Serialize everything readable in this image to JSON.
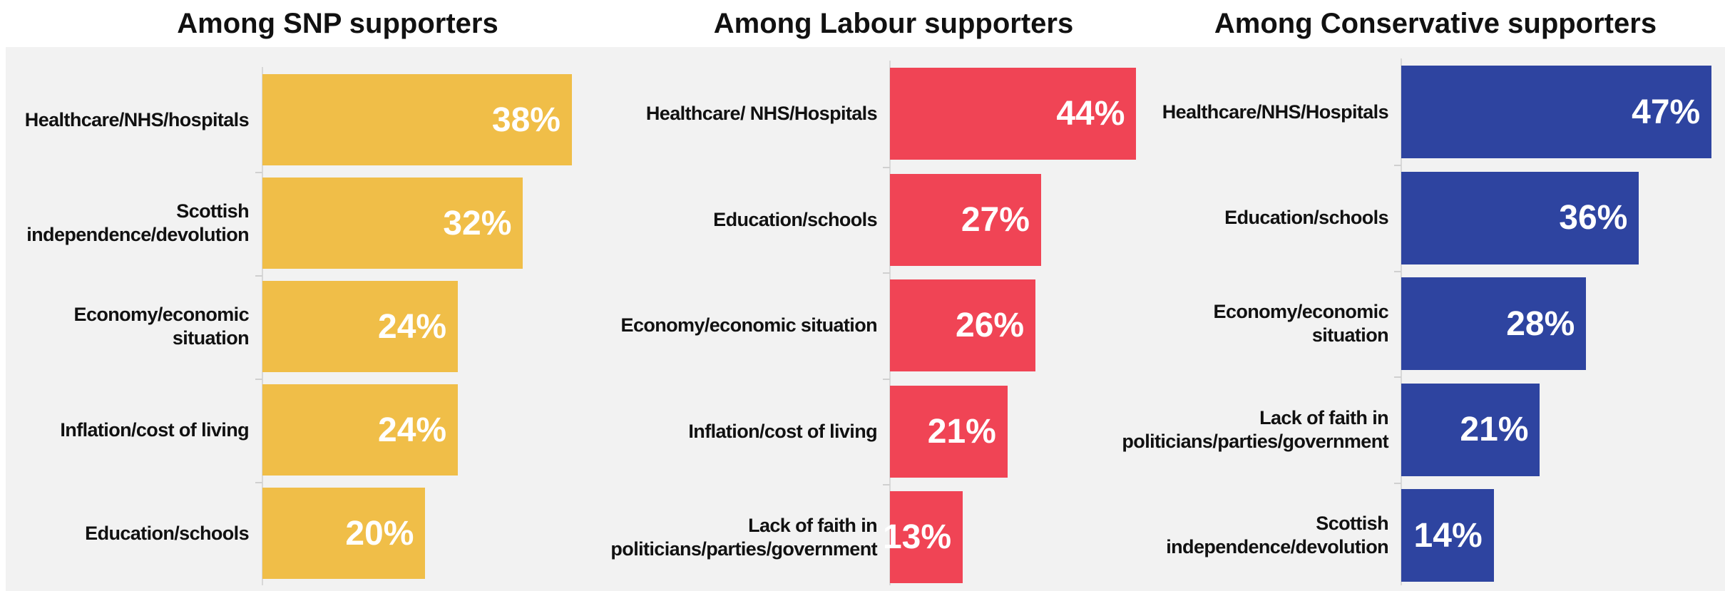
{
  "chart_data": [
    {
      "type": "bar",
      "title": "Among SNP supporters",
      "color": "#f0be48",
      "categories": [
        "Healthcare/NHS/hospitals",
        "Scottish independence/devolution",
        "Economy/economic situation",
        "Inflation/cost of living",
        "Education/schools"
      ],
      "values": [
        38,
        32,
        24,
        24,
        20
      ],
      "value_labels": [
        "38%",
        "32%",
        "24%",
        "24%",
        "20%"
      ]
    },
    {
      "type": "bar",
      "title": "Among Labour supporters",
      "color": "#f04455",
      "categories": [
        "Healthcare/ NHS/Hospitals",
        "Education/schools",
        "Economy/economic situation",
        "Inflation/cost of living",
        "Lack of faith in politicians/parties/government"
      ],
      "values": [
        44,
        27,
        26,
        21,
        13
      ],
      "value_labels": [
        "44%",
        "27%",
        "26%",
        "21%",
        "13%"
      ]
    },
    {
      "type": "bar",
      "title": "Among Conservative supporters",
      "color": "#2e44a0",
      "categories": [
        "Healthcare/NHS/Hospitals",
        "Education/schools",
        "Economy/economic situation",
        "Lack of faith in politicians/parties/government",
        "Scottish independence/devolution"
      ],
      "values": [
        47,
        36,
        28,
        21,
        14
      ],
      "value_labels": [
        "47%",
        "36%",
        "28%",
        "21%",
        "14%"
      ]
    }
  ]
}
